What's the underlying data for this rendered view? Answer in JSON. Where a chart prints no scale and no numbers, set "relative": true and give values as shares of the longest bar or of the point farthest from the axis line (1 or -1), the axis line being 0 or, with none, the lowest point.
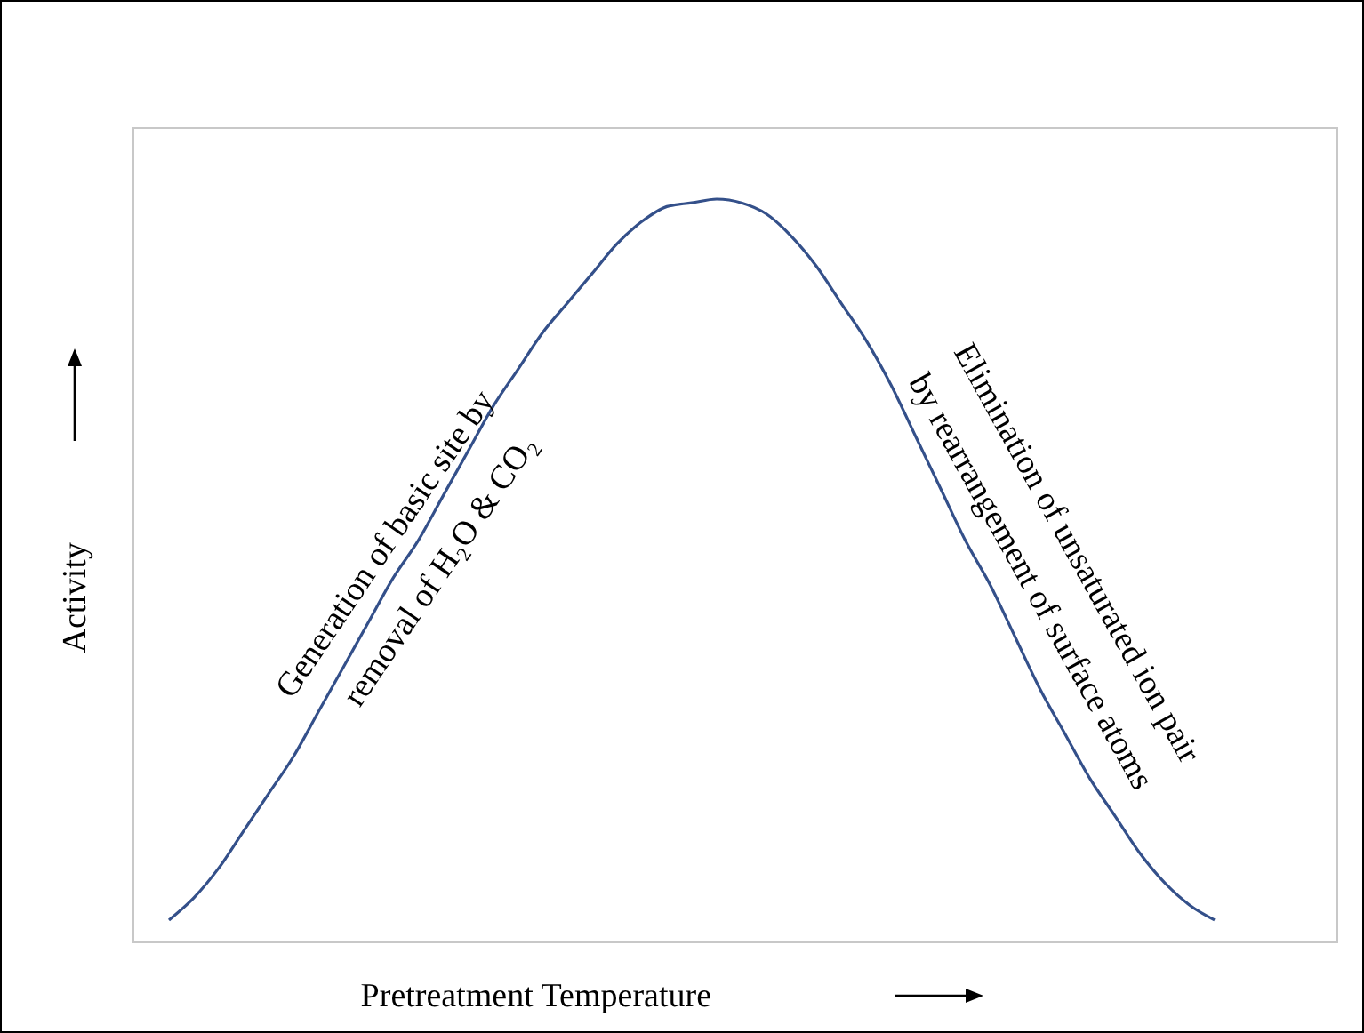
{
  "chart_data": {
    "type": "line",
    "relative": true,
    "xlabel": "Pretreatment Temperature",
    "ylabel": "Activity",
    "categories": [
      null,
      null,
      null,
      null,
      null,
      null,
      null,
      null,
      null,
      null,
      null,
      null,
      null,
      null,
      null,
      null,
      null,
      null,
      null,
      null,
      null,
      null,
      null,
      null,
      null,
      null,
      null,
      null,
      null,
      null,
      null,
      null,
      null,
      null,
      null,
      null,
      null,
      null,
      null,
      null,
      null,
      null,
      null
    ],
    "series": [
      {
        "color": "#34508a",
        "values": [
          0.03,
          0.06,
          0.1,
          0.15,
          0.2,
          0.25,
          0.31,
          0.37,
          0.43,
          0.49,
          0.54,
          0.6,
          0.66,
          0.72,
          0.77,
          0.82,
          0.86,
          0.9,
          0.94,
          0.97,
          0.99,
          0.995,
          1,
          0.995,
          0.98,
          0.95,
          0.91,
          0.86,
          0.81,
          0.75,
          0.68,
          0.61,
          0.54,
          0.48,
          0.41,
          0.34,
          0.28,
          0.22,
          0.17,
          0.12,
          0.08,
          0.05,
          0.03
        ]
      }
    ],
    "annotations": [
      "Generation of basic site by",
      "removal of H₂O & CO₂",
      "Elimination of unsaturated ion pair",
      "by rearrangement of surface atoms"
    ],
    "grid": false,
    "marker": "none",
    "line_style": "solid"
  }
}
